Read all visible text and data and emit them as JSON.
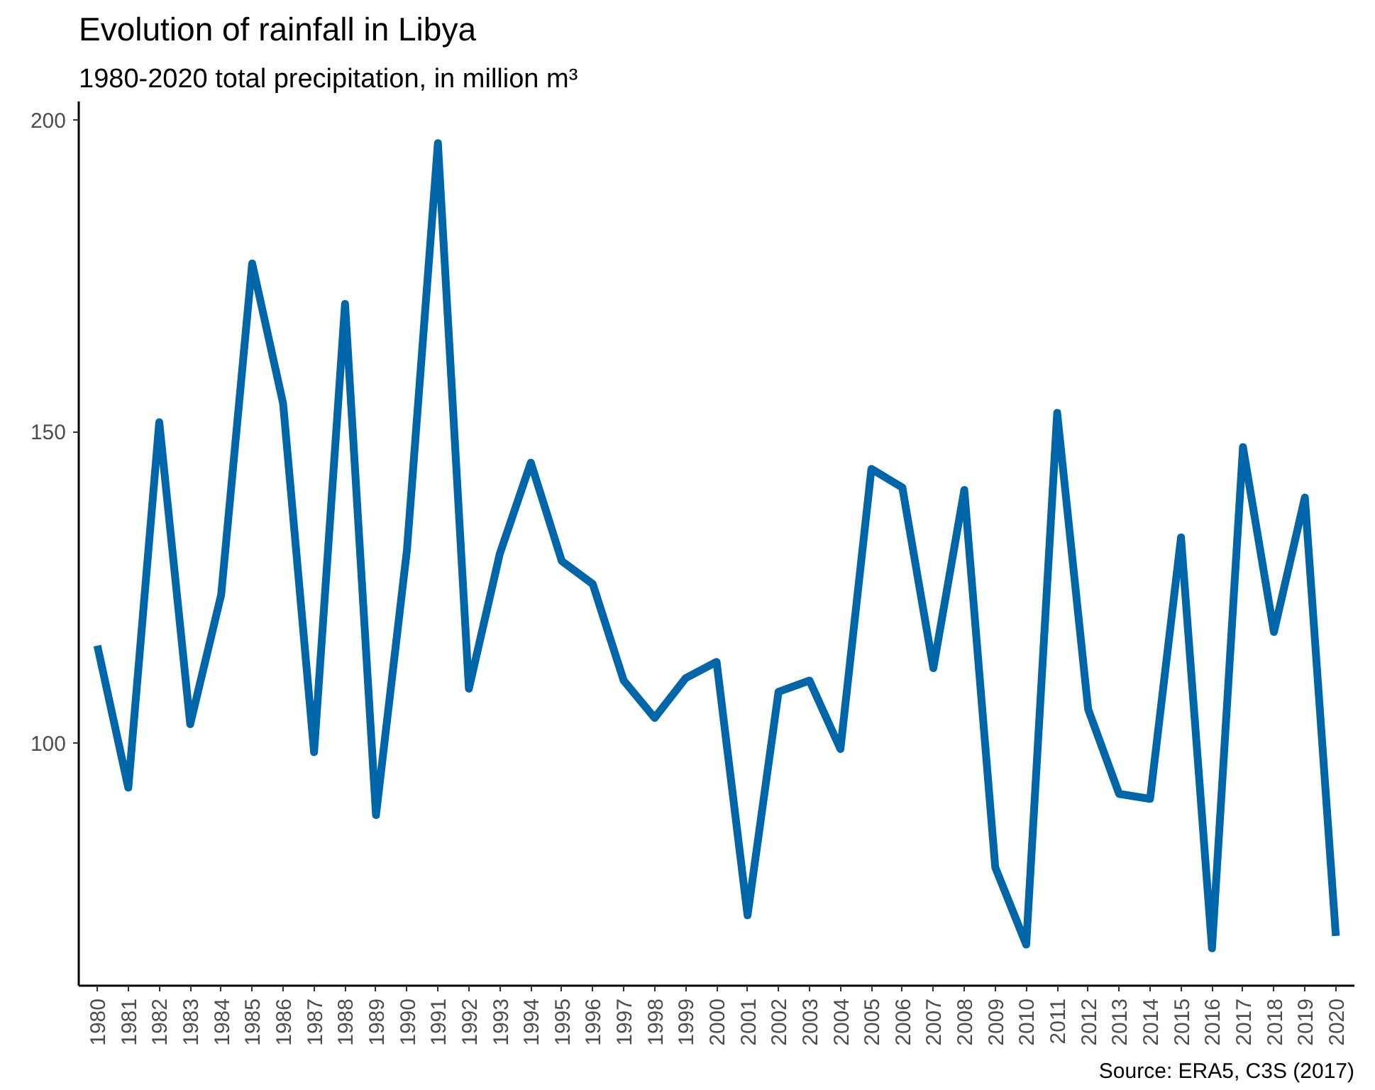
{
  "chart_data": {
    "type": "line",
    "title": "Evolution of rainfall in Libya",
    "subtitle": "1980-2020 total precipitation, in million m³",
    "annotations": [
      "Source: ERA5, C3S (2017)"
    ],
    "x": [
      1980,
      1981,
      1982,
      1983,
      1984,
      1985,
      1986,
      1987,
      1988,
      1989,
      1990,
      1991,
      1992,
      1993,
      1994,
      1995,
      1996,
      1997,
      1998,
      1999,
      2000,
      2001,
      2002,
      2003,
      2004,
      2005,
      2006,
      2007,
      2008,
      2009,
      2010,
      2011,
      2012,
      2013,
      2014,
      2015,
      2016,
      2017,
      2018,
      2019,
      2020
    ],
    "series": [
      {
        "color": "#0066aa",
        "values": [
          115.6,
          92.8,
          151.5,
          103,
          123.8,
          177,
          154.5,
          98.5,
          170.5,
          88.4,
          131,
          196.3,
          108.7,
          130.4,
          145,
          129.2,
          125.5,
          110,
          104,
          110.4,
          113,
          72.3,
          108.2,
          110,
          99,
          144,
          141,
          112,
          140.6,
          80,
          67.6,
          153,
          105.4,
          91.8,
          91,
          133,
          67,
          147.5,
          117.8,
          139.4,
          69
        ]
      }
    ],
    "xlim": [
      1979.4,
      2020.6
    ],
    "xticks": [
      1980,
      1981,
      1982,
      1983,
      1984,
      1985,
      1986,
      1987,
      1988,
      1989,
      1990,
      1991,
      1992,
      1993,
      1994,
      1995,
      1996,
      1997,
      1998,
      1999,
      2000,
      2001,
      2002,
      2003,
      2004,
      2005,
      2006,
      2007,
      2008,
      2009,
      2010,
      2011,
      2012,
      2013,
      2014,
      2015,
      2016,
      2017,
      2018,
      2019,
      2020
    ],
    "ylim": [
      61,
      203
    ],
    "yticks": [
      100,
      150,
      200
    ],
    "grid": false,
    "marker": "none",
    "line_style": "solid"
  }
}
